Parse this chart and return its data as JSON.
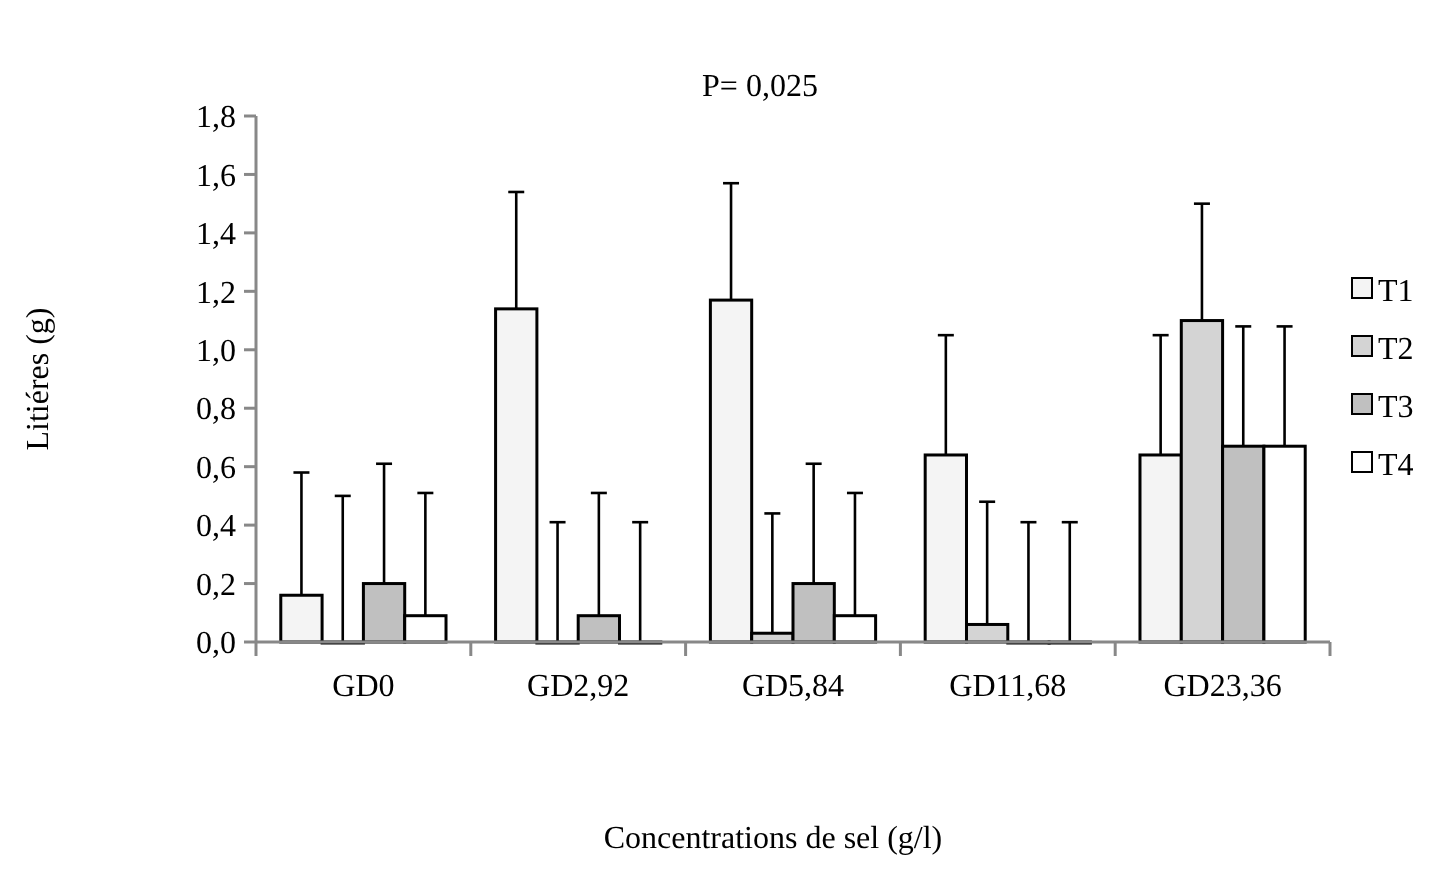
{
  "chart_data": {
    "type": "bar",
    "xlabel": "Concentrations de sel (g/l)",
    "ylabel": "Litiéres (g)",
    "categories": [
      "GD0",
      "GD2,92",
      "GD5,84",
      "GD11,68",
      "GD23,36"
    ],
    "series": [
      {
        "name": "T1",
        "color": "#f4f4f4",
        "values": [
          0.16,
          1.14,
          1.17,
          0.64,
          0.64
        ],
        "errors": [
          [
            0.16,
            0.58
          ],
          [
            1.14,
            1.54
          ],
          [
            1.17,
            1.57
          ],
          [
            0.64,
            1.05
          ],
          [
            0.64,
            1.05
          ]
        ]
      },
      {
        "name": "T2",
        "color": "#d4d4d4",
        "values": [
          0,
          0,
          0.03,
          0.06,
          1.1
        ],
        "errors": [
          [
            0,
            0.5
          ],
          [
            0,
            0.41
          ],
          [
            0.03,
            0.44
          ],
          [
            0.06,
            0.48
          ],
          [
            1.1,
            1.5
          ]
        ]
      },
      {
        "name": "T3",
        "color": "#c0c0c0",
        "values": [
          0.2,
          0.09,
          0.2,
          0,
          0.67
        ],
        "errors": [
          [
            0.2,
            0.61
          ],
          [
            0.09,
            0.51
          ],
          [
            0.2,
            0.61
          ],
          [
            0,
            0.41
          ],
          [
            0.67,
            1.08
          ]
        ]
      },
      {
        "name": "T4",
        "color": "#ffffff",
        "values": [
          0.09,
          0,
          0.09,
          0,
          0.67
        ],
        "errors": [
          [
            0.09,
            0.51
          ],
          [
            0,
            0.41
          ],
          [
            0.09,
            0.51
          ],
          [
            0,
            0.41
          ],
          [
            0.67,
            1.08
          ]
        ]
      }
    ],
    "ylim": [
      0,
      1.8
    ],
    "yticks": [
      {
        "value": 0,
        "label": "0,0"
      },
      {
        "value": 0.2,
        "label": "0,2"
      },
      {
        "value": 0.4,
        "label": "0,4"
      },
      {
        "value": 0.6,
        "label": "0,6"
      },
      {
        "value": 0.8,
        "label": "0,8"
      },
      {
        "value": 1.0,
        "label": "1,0"
      },
      {
        "value": 1.2,
        "label": "1,2"
      },
      {
        "value": 1.4,
        "label": "1,4"
      },
      {
        "value": 1.6,
        "label": "1,6"
      },
      {
        "value": 1.8,
        "label": "1,8"
      }
    ],
    "annotations": [
      "P= 0,025"
    ],
    "legend": "right",
    "grid": false
  }
}
